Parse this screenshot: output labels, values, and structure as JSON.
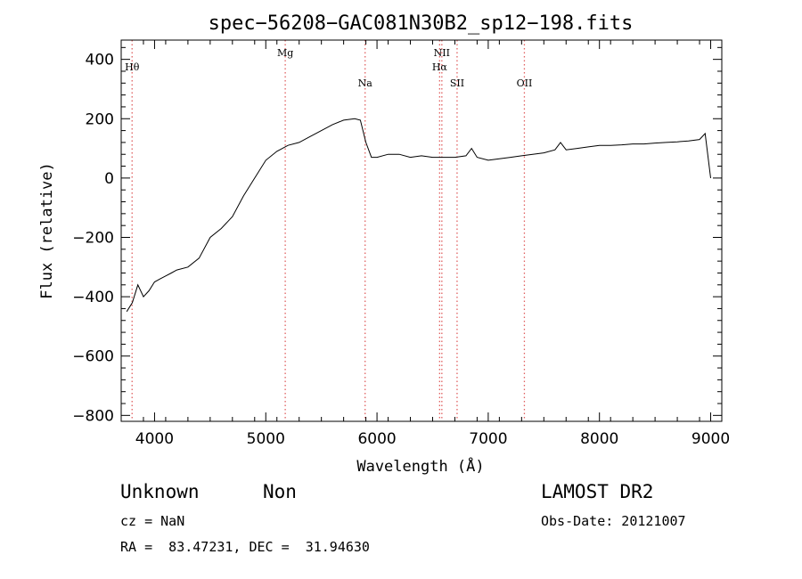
{
  "chart_data": {
    "type": "line",
    "title": "spec−56208−GAC081N30B2_sp12−198.fits",
    "xlabel": "Wavelength (Å)",
    "ylabel": "Flux (relative)",
    "xlim": [
      3700,
      9100
    ],
    "ylim": [
      -820,
      465
    ],
    "x_ticks": [
      4000,
      5000,
      6000,
      7000,
      8000,
      9000
    ],
    "x_tick_labels": [
      "4000",
      "5000",
      "6000",
      "7000",
      "8000",
      "9000"
    ],
    "y_ticks": [
      -800,
      -600,
      -400,
      -200,
      0,
      200,
      400
    ],
    "y_tick_labels": [
      "−800",
      "−600",
      "−400",
      "−200",
      "0",
      "200",
      "400"
    ],
    "grid": false,
    "line_color": "#000000",
    "marker_color": "#e06060",
    "series": [
      {
        "x": [
          3750,
          3800,
          3850,
          3900,
          3950,
          4000,
          4050,
          4100,
          4150,
          4200,
          4300,
          4400,
          4500,
          4600,
          4700,
          4800,
          4900,
          5000,
          5100,
          5200,
          5300,
          5400,
          5500,
          5600,
          5700,
          5800,
          5850,
          5900,
          5950,
          6000,
          6100,
          6200,
          6300,
          6400,
          6500,
          6600,
          6700,
          6800,
          6850,
          6900,
          7000,
          7100,
          7200,
          7300,
          7400,
          7500,
          7600,
          7650,
          7700,
          7800,
          7900,
          8000,
          8100,
          8200,
          8300,
          8400,
          8500,
          8600,
          8700,
          8800,
          8900,
          8950,
          9000
        ],
        "y": [
          -450,
          -420,
          -360,
          -400,
          -380,
          -350,
          -340,
          -330,
          -320,
          -310,
          -300,
          -270,
          -200,
          -170,
          -130,
          -60,
          0,
          60,
          90,
          110,
          120,
          140,
          160,
          180,
          195,
          200,
          195,
          120,
          70,
          70,
          80,
          80,
          70,
          75,
          70,
          70,
          70,
          75,
          100,
          70,
          60,
          65,
          70,
          75,
          80,
          85,
          95,
          120,
          95,
          100,
          105,
          110,
          110,
          112,
          115,
          115,
          118,
          120,
          122,
          125,
          130,
          150,
          0
        ]
      }
    ],
    "lines": [
      {
        "label": "Hθ",
        "x": 3798,
        "label_row": 1
      },
      {
        "label": "Mg",
        "x": 5175,
        "label_row": 0
      },
      {
        "label": "Na",
        "x": 5893,
        "label_row": 2
      },
      {
        "label": "NII",
        "x": 6583,
        "label_row": 0
      },
      {
        "label": "Hα",
        "x": 6563,
        "label_row": 1
      },
      {
        "label": "SII",
        "x": 6720,
        "label_row": 2
      },
      {
        "label": "OII",
        "x": 7325,
        "label_row": 2
      }
    ]
  },
  "info": {
    "class": "Unknown",
    "subclass": "Non",
    "survey": "LAMOST DR2",
    "cz": "cz = NaN",
    "obs_date": "Obs-Date: 20121007",
    "coords": "RA =  83.47231, DEC =  31.94630"
  }
}
